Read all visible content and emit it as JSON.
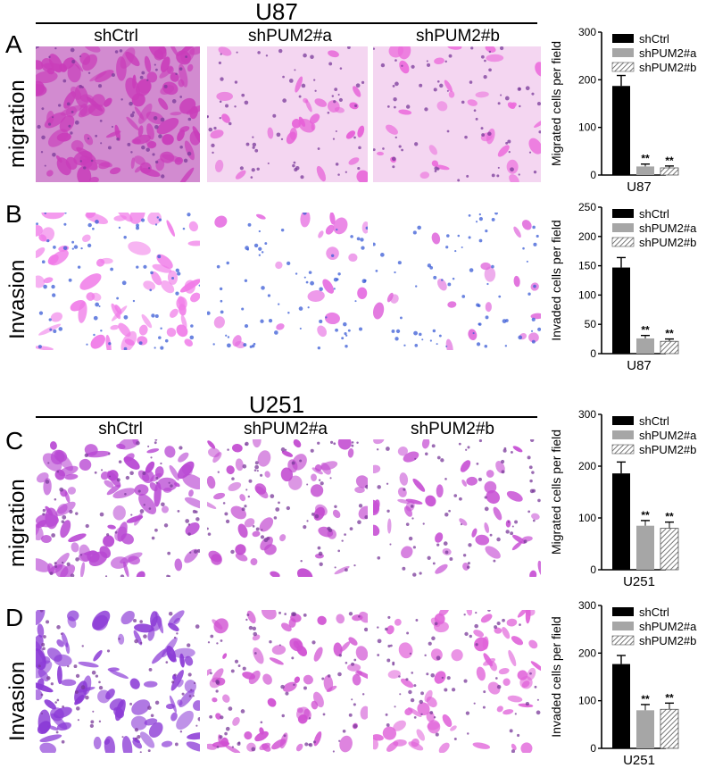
{
  "cell_lines": {
    "top": "U87",
    "bottom": "U251"
  },
  "column_labels": [
    "shCtrl",
    "shPUM2#a",
    "shPUM2#b"
  ],
  "rows": [
    {
      "letter": "A",
      "label": "migration",
      "cell_line": "U87",
      "tones": [
        "#c93dba",
        "#e65fd7",
        "#ec6ddc"
      ]
    },
    {
      "letter": "B",
      "label": "Invasion",
      "cell_line": "U87",
      "tones": [
        "#f07be8",
        "#e66fe1",
        "#e06bdc"
      ]
    },
    {
      "letter": "C",
      "label": "migration",
      "cell_line": "U251",
      "tones": [
        "#b847d3",
        "#c24ad0",
        "#c750d4"
      ]
    },
    {
      "letter": "D",
      "label": "Invasion",
      "cell_line": "U251",
      "tones": [
        "#8b3ad6",
        "#d050d2",
        "#e062d9"
      ]
    }
  ],
  "legend": [
    "shCtrl",
    "shPUM2#a",
    "shPUM2#b"
  ],
  "colors": {
    "shCtrl": "#000000",
    "shPUM2a": "#a6a6a6",
    "shPUM2b": "hatched"
  },
  "chart_data": [
    {
      "type": "bar",
      "panel": "A",
      "categories": [
        "shCtrl",
        "shPUM2#a",
        "shPUM2#b"
      ],
      "values": [
        187,
        18,
        15
      ],
      "errors": [
        22,
        5,
        4
      ],
      "significance": [
        "",
        "**",
        "**"
      ],
      "ylabel": "Migrated cells per field",
      "xlabel": "U87",
      "ylim": [
        0,
        300
      ],
      "yticks": [
        0,
        100,
        200,
        300
      ]
    },
    {
      "type": "bar",
      "panel": "B",
      "categories": [
        "shCtrl",
        "shPUM2#a",
        "shPUM2#b"
      ],
      "values": [
        147,
        26,
        21
      ],
      "errors": [
        17,
        5,
        4
      ],
      "significance": [
        "",
        "**",
        "**"
      ],
      "ylabel": "Invaded cells per field",
      "xlabel": "U87",
      "ylim": [
        0,
        250
      ],
      "yticks": [
        0,
        50,
        100,
        150,
        200,
        250
      ]
    },
    {
      "type": "bar",
      "panel": "C",
      "categories": [
        "shCtrl",
        "shPUM2#a",
        "shPUM2#b"
      ],
      "values": [
        186,
        85,
        80
      ],
      "errors": [
        22,
        10,
        12
      ],
      "significance": [
        "",
        "**",
        "**"
      ],
      "ylabel": "Migrated cells per field",
      "xlabel": "U251",
      "ylim": [
        0,
        300
      ],
      "yticks": [
        0,
        100,
        200,
        300
      ]
    },
    {
      "type": "bar",
      "panel": "D",
      "categories": [
        "shCtrl",
        "shPUM2#a",
        "shPUM2#b"
      ],
      "values": [
        177,
        80,
        82
      ],
      "errors": [
        18,
        12,
        13
      ],
      "significance": [
        "",
        "**",
        "**"
      ],
      "ylabel": "Invaded cells per field",
      "xlabel": "U251",
      "ylim": [
        0,
        300
      ],
      "yticks": [
        0,
        100,
        200,
        300
      ]
    }
  ]
}
